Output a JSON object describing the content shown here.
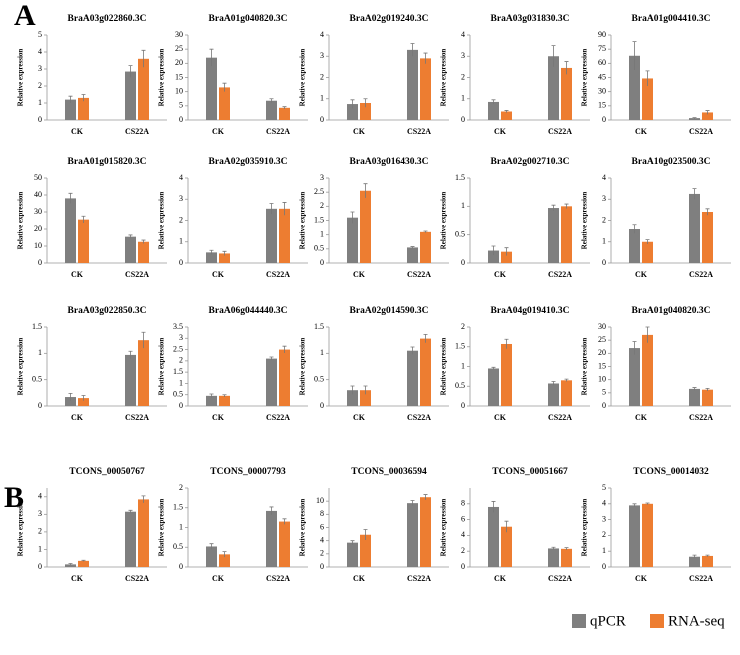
{
  "panel_labels": [
    "A",
    "B"
  ],
  "chart_data": [
    {
      "type": "bar",
      "title": "BraA03g022860.3C",
      "y_label": "Relative expression",
      "categories": [
        "CK",
        "CS22A"
      ],
      "series": [
        {
          "name": "qPCR",
          "color": "#7f7f7f",
          "values": [
            1.2,
            2.85
          ],
          "errors": [
            0.2,
            0.35
          ]
        },
        {
          "name": "RNA-seq",
          "color": "#ed7d31",
          "values": [
            1.3,
            3.6
          ],
          "errors": [
            0.2,
            0.5
          ]
        }
      ],
      "ylim": [
        0,
        5
      ],
      "yticks": [
        0,
        1,
        2,
        3,
        4,
        5
      ]
    },
    {
      "type": "bar",
      "title": "BraA01g040820.3C",
      "y_label": "Relative expression",
      "categories": [
        "CK",
        "CS22A"
      ],
      "series": [
        {
          "name": "qPCR",
          "color": "#7f7f7f",
          "values": [
            22,
            6.8
          ],
          "errors": [
            3,
            0.7
          ]
        },
        {
          "name": "RNA-seq",
          "color": "#ed7d31",
          "values": [
            11.5,
            4.3
          ],
          "errors": [
            1.5,
            0.4
          ]
        }
      ],
      "ylim": [
        0,
        30
      ],
      "yticks": [
        0,
        5,
        10,
        15,
        20,
        25,
        30
      ]
    },
    {
      "type": "bar",
      "title": "BraA02g019240.3C",
      "y_label": "Relative expression",
      "categories": [
        "CK",
        "CS22A"
      ],
      "series": [
        {
          "name": "qPCR",
          "color": "#7f7f7f",
          "values": [
            0.75,
            3.3
          ],
          "errors": [
            0.2,
            0.3
          ]
        },
        {
          "name": "RNA-seq",
          "color": "#ed7d31",
          "values": [
            0.8,
            2.9
          ],
          "errors": [
            0.2,
            0.25
          ]
        }
      ],
      "ylim": [
        0,
        4
      ],
      "yticks": [
        0,
        1,
        2,
        3,
        4
      ]
    },
    {
      "type": "bar",
      "title": "BraA03g031830.3C",
      "y_label": "Relative expression",
      "categories": [
        "CK",
        "CS22A"
      ],
      "series": [
        {
          "name": "qPCR",
          "color": "#7f7f7f",
          "values": [
            0.85,
            3.0
          ],
          "errors": [
            0.1,
            0.5
          ]
        },
        {
          "name": "RNA-seq",
          "color": "#ed7d31",
          "values": [
            0.4,
            2.45
          ],
          "errors": [
            0.05,
            0.3
          ]
        }
      ],
      "ylim": [
        0,
        4
      ],
      "yticks": [
        0,
        1,
        2,
        3,
        4
      ]
    },
    {
      "type": "bar",
      "title": "BraA01g004410.3C",
      "y_label": "Relative expression",
      "categories": [
        "CK",
        "CS22A"
      ],
      "series": [
        {
          "name": "qPCR",
          "color": "#7f7f7f",
          "values": [
            68,
            2
          ],
          "errors": [
            15,
            0.5
          ]
        },
        {
          "name": "RNA-seq",
          "color": "#ed7d31",
          "values": [
            44,
            8
          ],
          "errors": [
            8,
            2
          ]
        }
      ],
      "ylim": [
        0,
        90
      ],
      "yticks": [
        0,
        15,
        30,
        45,
        60,
        75,
        90
      ]
    },
    {
      "type": "bar",
      "title": "BraA01g015820.3C",
      "y_label": "Relative expression",
      "categories": [
        "CK",
        "CS22A"
      ],
      "series": [
        {
          "name": "qPCR",
          "color": "#7f7f7f",
          "values": [
            38,
            15.5
          ],
          "errors": [
            3,
            1
          ]
        },
        {
          "name": "RNA-seq",
          "color": "#ed7d31",
          "values": [
            25.5,
            12.5
          ],
          "errors": [
            2,
            1
          ]
        }
      ],
      "ylim": [
        0,
        50
      ],
      "yticks": [
        0,
        10,
        20,
        30,
        40,
        50
      ]
    },
    {
      "type": "bar",
      "title": "BraA02g035910.3C",
      "y_label": "Relative expression",
      "categories": [
        "CK",
        "CS22A"
      ],
      "series": [
        {
          "name": "qPCR",
          "color": "#7f7f7f",
          "values": [
            0.5,
            2.55
          ],
          "errors": [
            0.1,
            0.25
          ]
        },
        {
          "name": "RNA-seq",
          "color": "#ed7d31",
          "values": [
            0.45,
            2.55
          ],
          "errors": [
            0.1,
            0.3
          ]
        }
      ],
      "ylim": [
        0,
        4
      ],
      "yticks": [
        0,
        1,
        2,
        3,
        4
      ]
    },
    {
      "type": "bar",
      "title": "BraA03g016430.3C",
      "y_label": "Relative expression",
      "categories": [
        "CK",
        "CS22A"
      ],
      "series": [
        {
          "name": "qPCR",
          "color": "#7f7f7f",
          "values": [
            1.6,
            0.55
          ],
          "errors": [
            0.2,
            0.03
          ]
        },
        {
          "name": "RNA-seq",
          "color": "#ed7d31",
          "values": [
            2.55,
            1.1
          ],
          "errors": [
            0.25,
            0.03
          ]
        }
      ],
      "ylim": [
        0,
        3
      ],
      "yticks": [
        0,
        0.5,
        1,
        1.5,
        2,
        2.5,
        3
      ]
    },
    {
      "type": "bar",
      "title": "BraA02g002710.3C",
      "y_label": "Relative expression",
      "categories": [
        "CK",
        "CS22A"
      ],
      "series": [
        {
          "name": "qPCR",
          "color": "#7f7f7f",
          "values": [
            0.22,
            0.97
          ],
          "errors": [
            0.08,
            0.05
          ]
        },
        {
          "name": "RNA-seq",
          "color": "#ed7d31",
          "values": [
            0.2,
            1.0
          ],
          "errors": [
            0.07,
            0.04
          ]
        }
      ],
      "ylim": [
        0,
        1.5
      ],
      "yticks": [
        0,
        0.5,
        1,
        1.5
      ]
    },
    {
      "type": "bar",
      "title": "BraA10g023500.3C",
      "y_label": "Relative expression",
      "categories": [
        "CK",
        "CS22A"
      ],
      "series": [
        {
          "name": "qPCR",
          "color": "#7f7f7f",
          "values": [
            1.6,
            3.25
          ],
          "errors": [
            0.2,
            0.25
          ]
        },
        {
          "name": "RNA-seq",
          "color": "#ed7d31",
          "values": [
            1.0,
            2.4
          ],
          "errors": [
            0.1,
            0.15
          ]
        }
      ],
      "ylim": [
        0,
        4
      ],
      "yticks": [
        0,
        1,
        2,
        3,
        4
      ]
    },
    {
      "type": "bar",
      "title": "BraA03g022850.3C",
      "y_label": "Relative expression",
      "categories": [
        "CK",
        "CS22A"
      ],
      "series": [
        {
          "name": "qPCR",
          "color": "#7f7f7f",
          "values": [
            0.17,
            0.97
          ],
          "errors": [
            0.07,
            0.07
          ]
        },
        {
          "name": "RNA-seq",
          "color": "#ed7d31",
          "values": [
            0.15,
            1.25
          ],
          "errors": [
            0.05,
            0.15
          ]
        }
      ],
      "ylim": [
        0,
        1.5
      ],
      "yticks": [
        0,
        0.5,
        1,
        1.5
      ]
    },
    {
      "type": "bar",
      "title": "BraA06g044440.3C",
      "y_label": "Relative expression",
      "categories": [
        "CK",
        "CS22A"
      ],
      "series": [
        {
          "name": "qPCR",
          "color": "#7f7f7f",
          "values": [
            0.45,
            2.1
          ],
          "errors": [
            0.08,
            0.07
          ]
        },
        {
          "name": "RNA-seq",
          "color": "#ed7d31",
          "values": [
            0.45,
            2.5
          ],
          "errors": [
            0.05,
            0.15
          ]
        }
      ],
      "ylim": [
        0,
        3.5
      ],
      "yticks": [
        0,
        0.5,
        1,
        1.5,
        2,
        2.5,
        3,
        3.5
      ]
    },
    {
      "type": "bar",
      "title": "BraA02g014590.3C",
      "y_label": "Relative expression",
      "categories": [
        "CK",
        "CS22A"
      ],
      "series": [
        {
          "name": "qPCR",
          "color": "#7f7f7f",
          "values": [
            0.3,
            1.05
          ],
          "errors": [
            0.08,
            0.07
          ]
        },
        {
          "name": "RNA-seq",
          "color": "#ed7d31",
          "values": [
            0.3,
            1.28
          ],
          "errors": [
            0.08,
            0.08
          ]
        }
      ],
      "ylim": [
        0,
        1.5
      ],
      "yticks": [
        0,
        0.5,
        1,
        1.5
      ]
    },
    {
      "type": "bar",
      "title": "BraA04g019410.3C",
      "y_label": "Relative expression",
      "categories": [
        "CK",
        "CS22A"
      ],
      "series": [
        {
          "name": "qPCR",
          "color": "#7f7f7f",
          "values": [
            0.95,
            0.57
          ],
          "errors": [
            0.03,
            0.05
          ]
        },
        {
          "name": "RNA-seq",
          "color": "#ed7d31",
          "values": [
            1.57,
            0.65
          ],
          "errors": [
            0.12,
            0.03
          ]
        }
      ],
      "ylim": [
        0,
        2
      ],
      "yticks": [
        0,
        0.5,
        1,
        1.5,
        2
      ]
    },
    {
      "type": "bar",
      "title": "BraA01g040820.3C",
      "y_label": "Relative expression",
      "categories": [
        "CK",
        "CS22A"
      ],
      "series": [
        {
          "name": "qPCR",
          "color": "#7f7f7f",
          "values": [
            22,
            6.5
          ],
          "errors": [
            2.5,
            0.5
          ]
        },
        {
          "name": "RNA-seq",
          "color": "#ed7d31",
          "values": [
            27,
            6.2
          ],
          "errors": [
            3,
            0.5
          ]
        }
      ],
      "ylim": [
        0,
        30
      ],
      "yticks": [
        0,
        5,
        10,
        15,
        20,
        25,
        30
      ]
    },
    {
      "type": "bar",
      "title": "TCONS_00050767",
      "y_label": "Relative expression",
      "categories": [
        "CK",
        "CS22A"
      ],
      "series": [
        {
          "name": "qPCR",
          "color": "#7f7f7f",
          "values": [
            0.15,
            3.15
          ],
          "errors": [
            0.05,
            0.08
          ]
        },
        {
          "name": "RNA-seq",
          "color": "#ed7d31",
          "values": [
            0.35,
            3.85
          ],
          "errors": [
            0.03,
            0.2
          ]
        }
      ],
      "ylim": [
        0,
        4.5
      ],
      "yticks": [
        0,
        1,
        2,
        3,
        4
      ]
    },
    {
      "type": "bar",
      "title": "TCONS_00007793",
      "y_label": "Relative expression",
      "categories": [
        "CK",
        "CS22A"
      ],
      "series": [
        {
          "name": "qPCR",
          "color": "#7f7f7f",
          "values": [
            0.52,
            1.42
          ],
          "errors": [
            0.07,
            0.1
          ]
        },
        {
          "name": "RNA-seq",
          "color": "#ed7d31",
          "values": [
            0.32,
            1.15
          ],
          "errors": [
            0.07,
            0.07
          ]
        }
      ],
      "ylim": [
        0,
        2
      ],
      "yticks": [
        0,
        0.5,
        1,
        1.5,
        2
      ]
    },
    {
      "type": "bar",
      "title": "TCONS_00036594",
      "y_label": "Relative expression",
      "categories": [
        "CK",
        "CS22A"
      ],
      "series": [
        {
          "name": "qPCR",
          "color": "#7f7f7f",
          "values": [
            3.7,
            9.7
          ],
          "errors": [
            0.3,
            0.4
          ]
        },
        {
          "name": "RNA-seq",
          "color": "#ed7d31",
          "values": [
            4.9,
            10.6
          ],
          "errors": [
            0.8,
            0.4
          ]
        }
      ],
      "ylim": [
        0,
        12
      ],
      "yticks": [
        0,
        2,
        4,
        6,
        8,
        10
      ]
    },
    {
      "type": "bar",
      "title": "TCONS_00051667",
      "y_label": "Relative expression",
      "categories": [
        "CK",
        "CS22A"
      ],
      "series": [
        {
          "name": "qPCR",
          "color": "#7f7f7f",
          "values": [
            7.6,
            2.35
          ],
          "errors": [
            0.7,
            0.15
          ]
        },
        {
          "name": "RNA-seq",
          "color": "#ed7d31",
          "values": [
            5.1,
            2.3
          ],
          "errors": [
            0.7,
            0.15
          ]
        }
      ],
      "ylim": [
        0,
        10
      ],
      "yticks": [
        0,
        2,
        4,
        6,
        8
      ]
    },
    {
      "type": "bar",
      "title": "TCONS_00014032",
      "y_label": "Relative expression",
      "categories": [
        "CK",
        "CS22A"
      ],
      "series": [
        {
          "name": "qPCR",
          "color": "#7f7f7f",
          "values": [
            3.9,
            0.65
          ],
          "errors": [
            0.1,
            0.1
          ]
        },
        {
          "name": "RNA-seq",
          "color": "#ed7d31",
          "values": [
            4.0,
            0.7
          ],
          "errors": [
            0.05,
            0.05
          ]
        }
      ],
      "ylim": [
        0,
        5
      ],
      "yticks": [
        0,
        1,
        2,
        3,
        4,
        5
      ]
    }
  ]
}
